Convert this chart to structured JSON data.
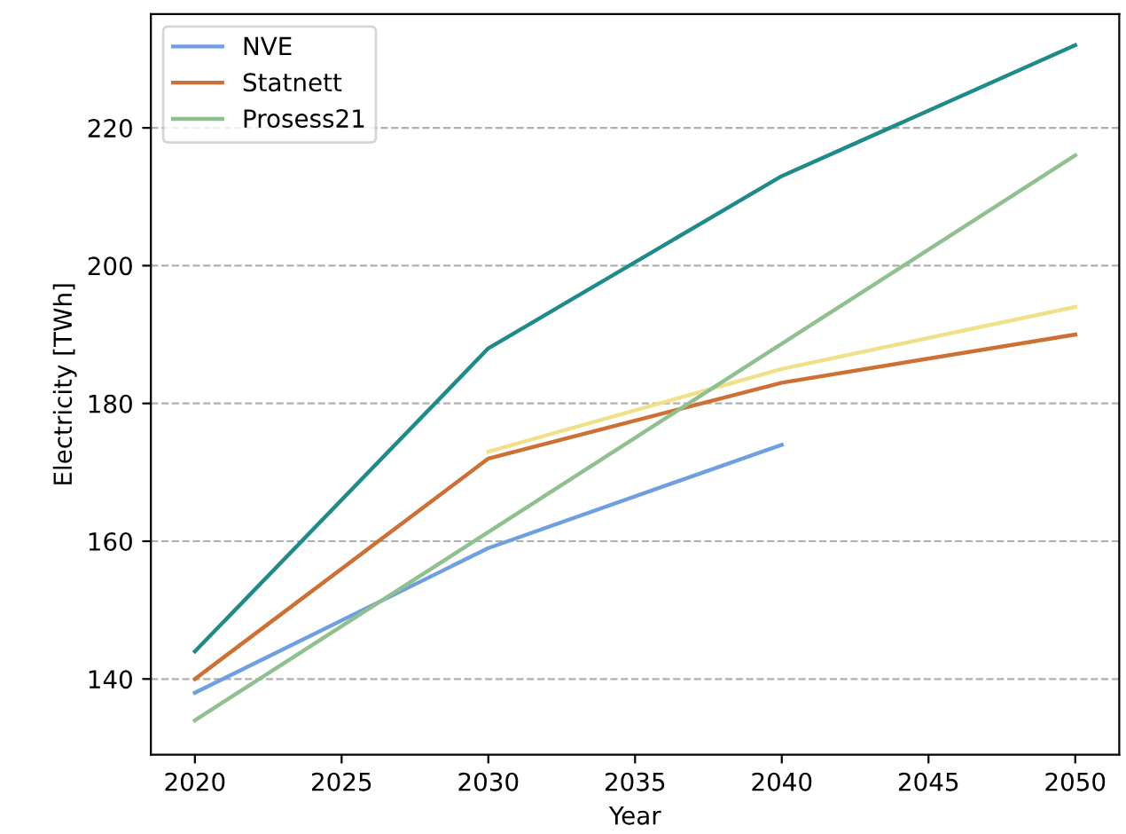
{
  "chart_data": {
    "type": "line",
    "xlabel": "Year",
    "ylabel": "Electricity [TWh]",
    "series": [
      {
        "name": "NVE",
        "color": "#6f9fe0",
        "x": [
          2020,
          2030,
          2040
        ],
        "values": [
          138,
          159,
          174
        ]
      },
      {
        "name": "Statnett",
        "color": "#cc7033",
        "x": [
          2020,
          2030,
          2040,
          2050
        ],
        "values": [
          140,
          172,
          183,
          190
        ]
      },
      {
        "color": "#1f8a8a",
        "x": [
          2020,
          2030,
          2040,
          2050
        ],
        "values": [
          144,
          188,
          213,
          232
        ]
      },
      {
        "color": "#f0e08a",
        "x": [
          2030,
          2040,
          2050
        ],
        "values": [
          173,
          185,
          194
        ]
      },
      {
        "name": "Prosess21",
        "color": "#90c090",
        "x": [
          2020,
          2050
        ],
        "values": [
          134,
          216
        ]
      }
    ],
    "xlim": [
      2018.5,
      2051.5
    ],
    "xticks": [
      2020,
      2025,
      2030,
      2035,
      2040,
      2045,
      2050
    ],
    "ylim": [
      129,
      236.5
    ],
    "yticks": [
      140,
      160,
      180,
      200,
      220
    ],
    "grid": "y",
    "legend": "top left",
    "marker": "none",
    "line_style": "solid"
  }
}
